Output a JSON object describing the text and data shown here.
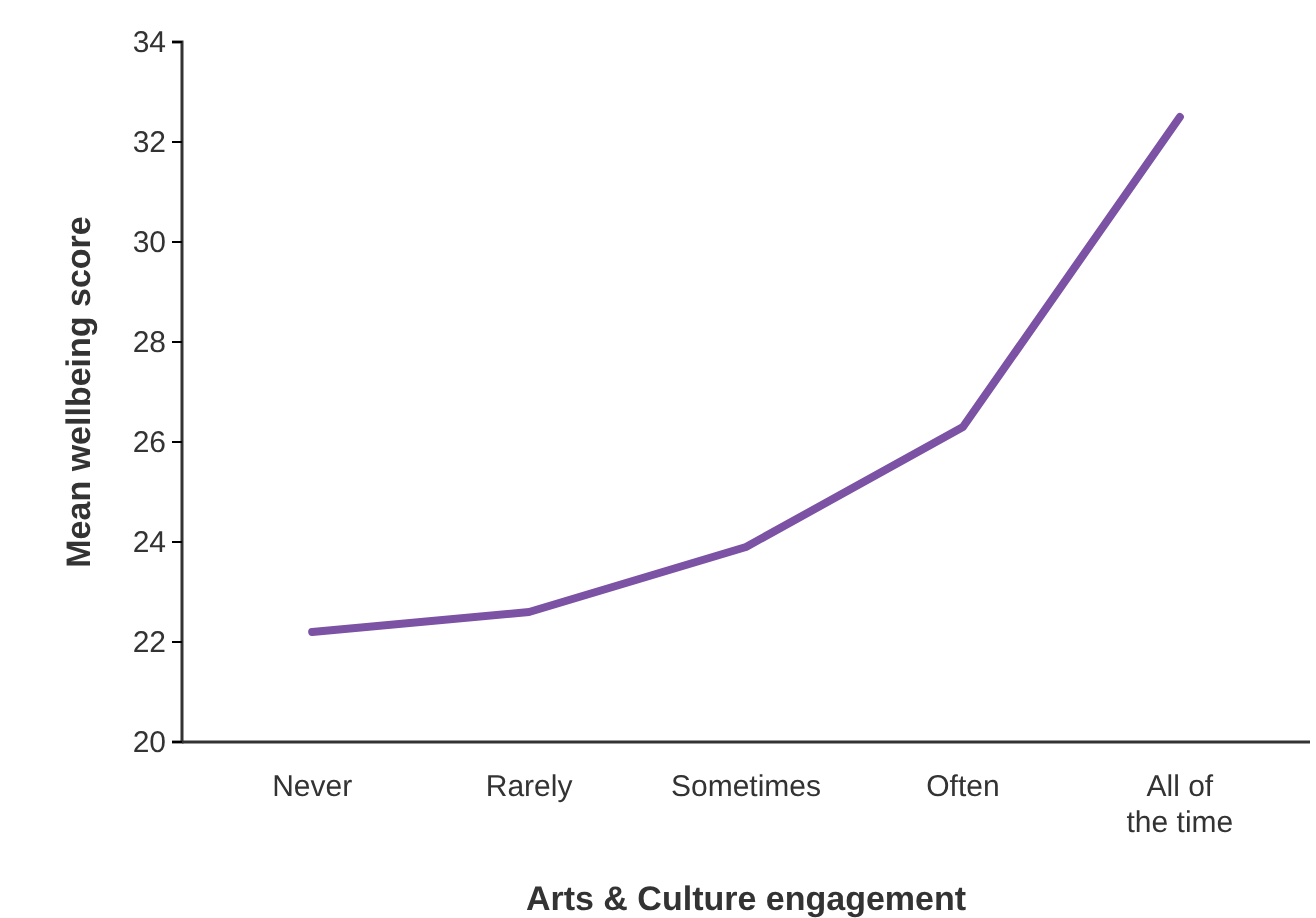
{
  "chart_data": {
    "type": "line",
    "xlabel": "Arts & Culture engagement",
    "ylabel": "Mean wellbeing score",
    "categories": [
      "Never",
      "Rarely",
      "Sometimes",
      "Often",
      "All of the time"
    ],
    "series": [
      {
        "color": "#7b52a4",
        "values": [
          22.2,
          22.6,
          23.9,
          26.3,
          32.5
        ]
      }
    ],
    "ylim": [
      20,
      34
    ],
    "yticks": [
      20,
      22,
      24,
      26,
      28,
      30,
      32,
      34
    ],
    "grid": false,
    "marker": "none",
    "line_style": "solid"
  }
}
